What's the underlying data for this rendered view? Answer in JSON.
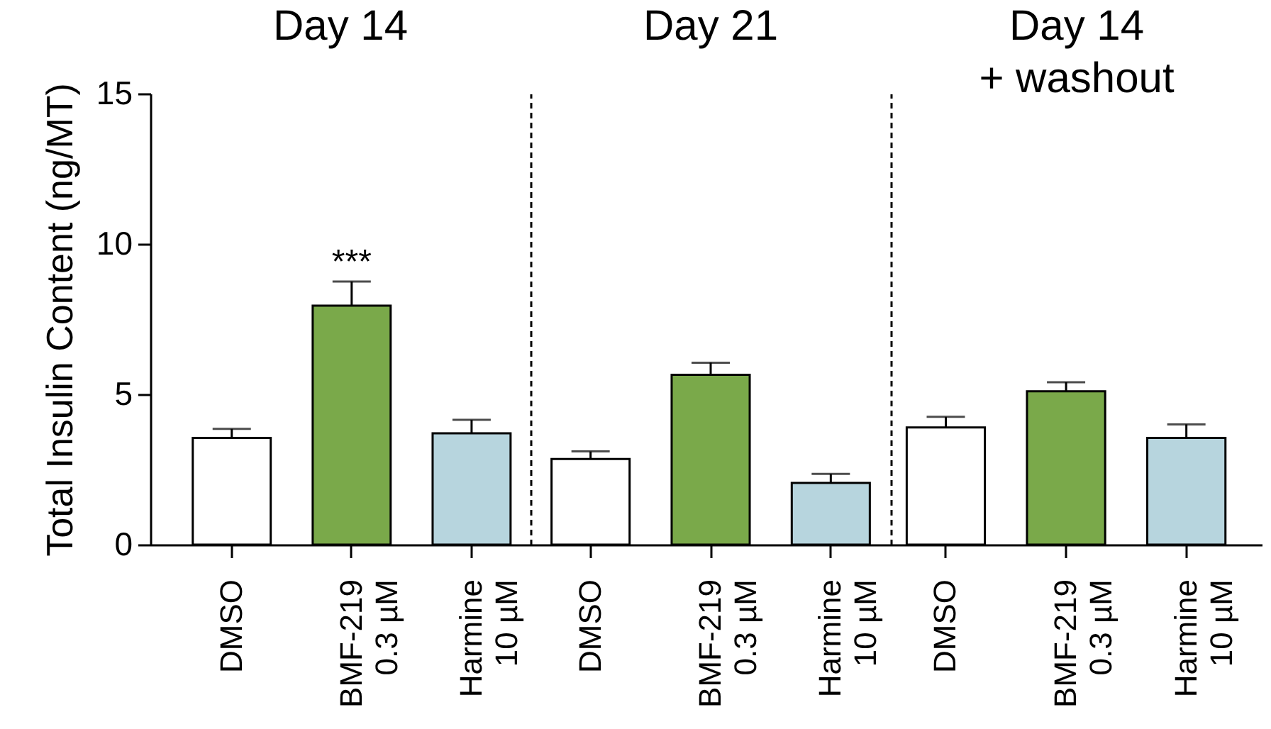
{
  "chart_data": [
    {
      "type": "bar",
      "title": "Day 14",
      "ylabel": "Total Insulin Content (ng/MT)",
      "categories": [
        "DMSO",
        "BMF-219\n0.3 µM",
        "Harmine\n10 µM"
      ],
      "values": [
        3.55,
        7.95,
        3.7
      ],
      "colors": [
        "#ffffff",
        "#7aa94a",
        "#b7d5de"
      ],
      "errors": [
        [
          3.55,
          3.85
        ],
        [
          7.95,
          8.75
        ],
        [
          3.7,
          4.15
        ]
      ],
      "ylim": [
        0,
        15
      ],
      "yticks": [
        0,
        5,
        10,
        15
      ],
      "annotations": [
        "***"
      ]
    },
    {
      "type": "bar",
      "title": "Day 21",
      "categories": [
        "DMSO",
        "BMF-219\n0.3 µM",
        "Harmine\n10 µM"
      ],
      "values": [
        2.85,
        5.65,
        2.05
      ],
      "colors": [
        "#ffffff",
        "#7aa94a",
        "#b7d5de"
      ],
      "errors": [
        [
          2.85,
          3.1
        ],
        [
          5.65,
          6.05
        ],
        [
          2.05,
          2.35
        ]
      ],
      "ylim": [
        0,
        15
      ],
      "tick_labels": "x"
    },
    {
      "type": "bar",
      "title": "Day 14\n+ washout",
      "categories": [
        "DMSO",
        "BMF-219\n0.3 µM",
        "Harmine\n10 µM"
      ],
      "values": [
        3.9,
        5.1,
        3.55
      ],
      "colors": [
        "#ffffff",
        "#7aa94a",
        "#b7d5de"
      ],
      "errors": [
        [
          3.9,
          4.25
        ],
        [
          5.1,
          5.4
        ],
        [
          3.55,
          4.0
        ]
      ],
      "ylim": [
        0,
        15
      ],
      "tick_labels": "x"
    }
  ]
}
